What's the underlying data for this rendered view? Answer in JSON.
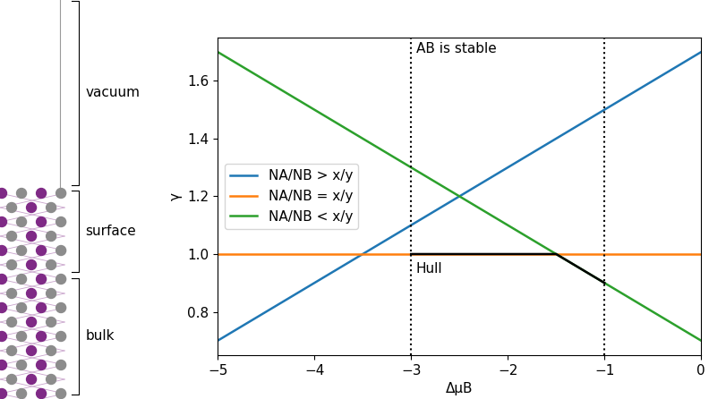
{
  "chart_data": {
    "type": "line",
    "xlabel": "ΔμB",
    "ylabel": "γ",
    "xlim": [
      -5,
      0
    ],
    "xticks": [
      {
        "value": -5,
        "label": "−5"
      },
      {
        "value": -4,
        "label": "−4"
      },
      {
        "value": -3,
        "label": "−3"
      },
      {
        "value": -2,
        "label": "−2"
      },
      {
        "value": -1,
        "label": "−1"
      },
      0
    ],
    "ylim": [
      0.65,
      1.75
    ],
    "yticks": [
      {
        "value": 0.8,
        "label": "0.8"
      },
      {
        "value": 1.0,
        "label": "1.0"
      },
      {
        "value": 1.2,
        "label": "1.2"
      },
      {
        "value": 1.4,
        "label": "1.4"
      },
      {
        "value": 1.6,
        "label": "1.6"
      }
    ],
    "legend": "center left",
    "series": [
      {
        "name": "NA/NB > x/y",
        "color": "#1f77b4",
        "x": [
          -5,
          0
        ],
        "values": [
          0.7,
          1.7
        ]
      },
      {
        "name": "NA/NB = x/y",
        "color": "#ff7f0e",
        "x": [
          -5,
          0
        ],
        "values": [
          1.0,
          1.0
        ]
      },
      {
        "name": "NA/NB < x/y",
        "color": "#2ca02c",
        "x": [
          -5,
          0
        ],
        "values": [
          1.7,
          0.7
        ]
      },
      {
        "color": "#000000",
        "x": [
          -3,
          -1.5,
          -1
        ],
        "values": [
          1.0,
          1.0,
          0.9
        ]
      }
    ],
    "vlines": [
      -3,
      -1
    ],
    "annotations": [
      {
        "text": "AB is stable",
        "x": -2.95,
        "y": 1.71
      },
      {
        "text": "Hull",
        "x": -2.95,
        "y": 0.95
      }
    ]
  },
  "diagram": {
    "regions": [
      {
        "label": "vacuum"
      },
      {
        "label": "surface"
      },
      {
        "label": "bulk"
      }
    ]
  }
}
